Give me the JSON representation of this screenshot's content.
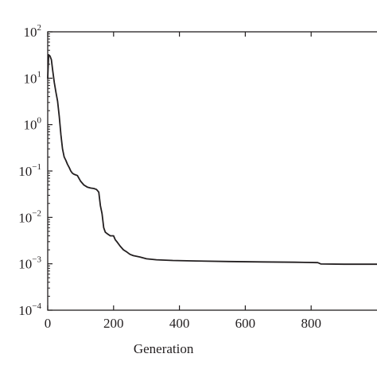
{
  "chart_data": {
    "type": "line",
    "title": "",
    "xlabel": "Generation",
    "ylabel": "",
    "xlim": [
      0,
      1000
    ],
    "ylim": [
      0.0001,
      100
    ],
    "yscale": "log",
    "grid": false,
    "x_ticks": [
      {
        "value": 0,
        "label": "0"
      },
      {
        "value": 200,
        "label": "200"
      },
      {
        "value": 400,
        "label": "400"
      },
      {
        "value": 600,
        "label": "600"
      },
      {
        "value": 800,
        "label": "800"
      }
    ],
    "y_ticks": [
      {
        "value": 100,
        "base": "10",
        "exp": "2"
      },
      {
        "value": 10,
        "base": "10",
        "exp": "1"
      },
      {
        "value": 1,
        "base": "10",
        "exp": "0"
      },
      {
        "value": 0.1,
        "base": "10",
        "exp": "−1"
      },
      {
        "value": 0.01,
        "base": "10",
        "exp": "−2"
      },
      {
        "value": 0.001,
        "base": "10",
        "exp": "−3"
      },
      {
        "value": 0.0001,
        "base": "10",
        "exp": "−4"
      }
    ],
    "series": [
      {
        "color": "#231f20",
        "x": [
          0,
          3,
          7,
          11,
          15,
          20,
          25,
          30,
          35,
          40,
          45,
          50,
          55,
          60,
          65,
          70,
          75,
          80,
          90,
          100,
          110,
          120,
          130,
          140,
          148,
          155,
          160,
          165,
          170,
          175,
          180,
          190,
          200,
          205,
          210,
          220,
          230,
          240,
          250,
          260,
          280,
          300,
          330,
          380,
          450,
          550,
          650,
          750,
          820,
          830,
          900,
          1000
        ],
        "y": [
          10,
          32,
          30,
          25,
          15,
          8,
          5,
          3.2,
          1.5,
          0.6,
          0.3,
          0.2,
          0.17,
          0.14,
          0.12,
          0.1,
          0.09,
          0.085,
          0.08,
          0.06,
          0.05,
          0.045,
          0.043,
          0.042,
          0.04,
          0.035,
          0.018,
          0.012,
          0.006,
          0.0048,
          0.0045,
          0.004,
          0.004,
          0.0033,
          0.003,
          0.0024,
          0.002,
          0.0018,
          0.0016,
          0.0015,
          0.0014,
          0.00128,
          0.00122,
          0.00118,
          0.00115,
          0.00112,
          0.0011,
          0.00108,
          0.00106,
          0.00099,
          0.00098,
          0.00098
        ]
      }
    ]
  }
}
